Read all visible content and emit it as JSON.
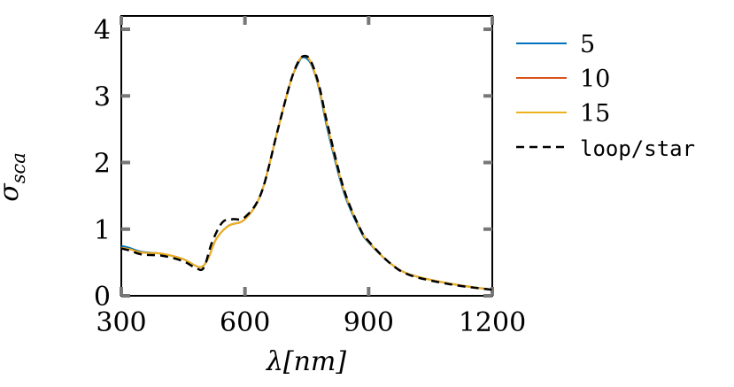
{
  "chart_data": {
    "type": "line",
    "title": "",
    "xlabel": "λ[nm]",
    "ylabel": "σ_sca",
    "xlim": [
      300,
      1200
    ],
    "ylim": [
      0,
      4.2
    ],
    "x_ticks": [
      300,
      600,
      900,
      1200
    ],
    "y_ticks": [
      0,
      1,
      2,
      3,
      4
    ],
    "grid": false,
    "legend_position": "outside-right",
    "series": [
      {
        "name": "5",
        "color": "#0072BD",
        "dash": "solid",
        "x": [
          300,
          320,
          350,
          400,
          450,
          490,
          510,
          530,
          560,
          600,
          640,
          680,
          710,
          730,
          742,
          760,
          780,
          800,
          840,
          880,
          900,
          950,
          1000,
          1100,
          1200
        ],
        "y": [
          0.75,
          0.72,
          0.66,
          0.63,
          0.55,
          0.43,
          0.55,
          0.85,
          1.05,
          1.15,
          1.55,
          2.5,
          3.2,
          3.5,
          3.58,
          3.48,
          3.1,
          2.5,
          1.55,
          0.98,
          0.8,
          0.5,
          0.32,
          0.18,
          0.09
        ]
      },
      {
        "name": "10",
        "color": "#D95319",
        "dash": "solid",
        "x": [
          300,
          320,
          350,
          400,
          450,
          490,
          510,
          530,
          560,
          600,
          640,
          680,
          710,
          730,
          745,
          760,
          780,
          800,
          840,
          880,
          900,
          950,
          1000,
          1100,
          1200
        ],
        "y": [
          0.72,
          0.7,
          0.65,
          0.63,
          0.55,
          0.43,
          0.55,
          0.85,
          1.05,
          1.15,
          1.55,
          2.5,
          3.2,
          3.52,
          3.6,
          3.5,
          3.12,
          2.55,
          1.58,
          1.0,
          0.81,
          0.5,
          0.32,
          0.18,
          0.09
        ]
      },
      {
        "name": "15",
        "color": "#EDB120",
        "dash": "solid",
        "x": [
          300,
          320,
          350,
          400,
          450,
          490,
          510,
          530,
          560,
          600,
          640,
          680,
          710,
          730,
          745,
          760,
          780,
          800,
          840,
          880,
          900,
          950,
          1000,
          1100,
          1200
        ],
        "y": [
          0.72,
          0.7,
          0.65,
          0.63,
          0.55,
          0.43,
          0.55,
          0.85,
          1.05,
          1.15,
          1.55,
          2.5,
          3.2,
          3.52,
          3.6,
          3.5,
          3.12,
          2.55,
          1.58,
          1.0,
          0.81,
          0.5,
          0.32,
          0.18,
          0.09
        ]
      },
      {
        "name": "loop/star",
        "color": "#000000",
        "dash": "dashed",
        "x": [
          300,
          320,
          350,
          400,
          450,
          480,
          500,
          520,
          545,
          570,
          600,
          640,
          680,
          710,
          730,
          745,
          760,
          780,
          800,
          840,
          880,
          900,
          950,
          1000,
          1100,
          1200
        ],
        "y": [
          0.71,
          0.68,
          0.62,
          0.6,
          0.52,
          0.42,
          0.42,
          0.8,
          1.1,
          1.15,
          1.18,
          1.55,
          2.5,
          3.2,
          3.52,
          3.6,
          3.52,
          3.15,
          2.58,
          1.6,
          1.0,
          0.82,
          0.5,
          0.31,
          0.17,
          0.09
        ]
      }
    ]
  }
}
